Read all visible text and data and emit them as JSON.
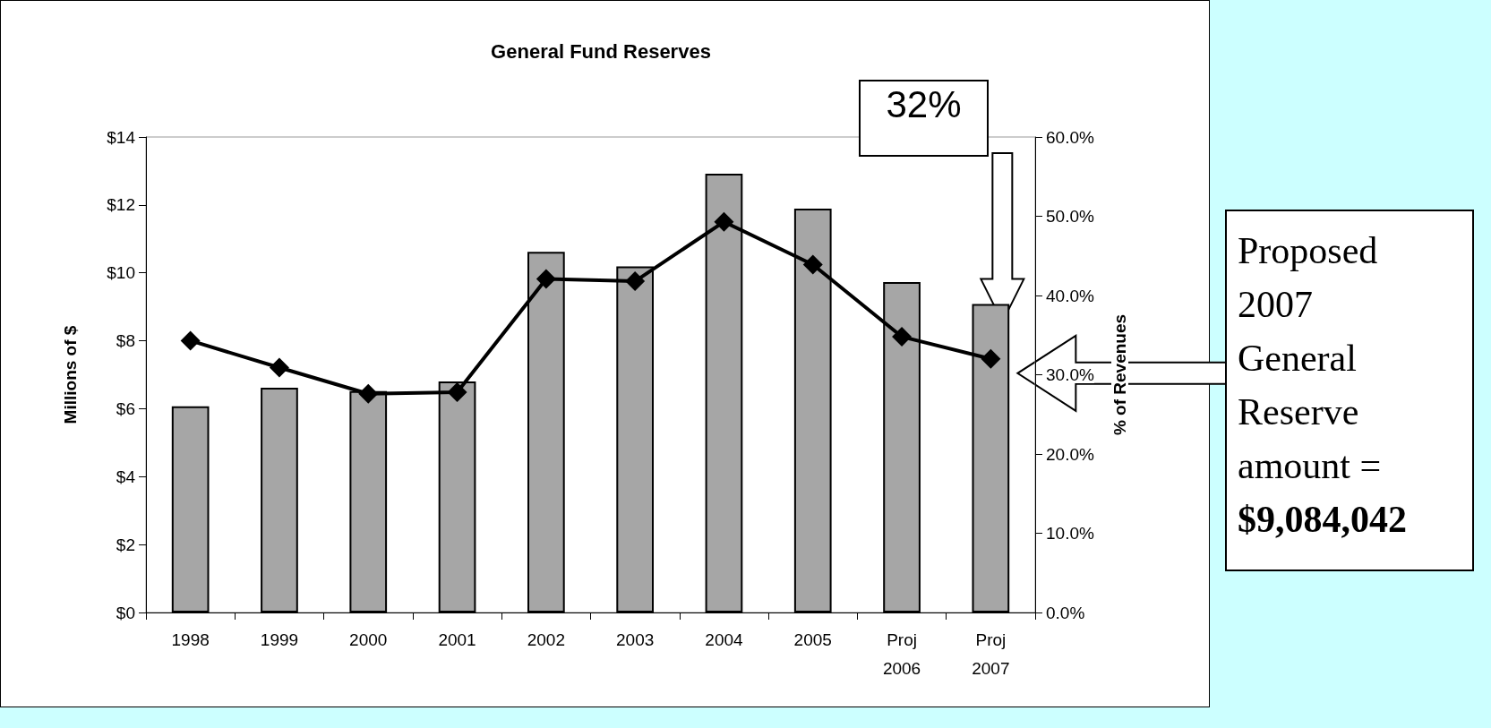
{
  "chart_data": {
    "type": "bar",
    "title": "General Fund Reserves",
    "ylabel": "Millions of $",
    "y2label": "% of Revenues",
    "categories": [
      "1998",
      "1999",
      "2000",
      "2001",
      "2002",
      "2003",
      "2004",
      "2005",
      "Proj\n2006",
      "Proj\n2007"
    ],
    "series": [
      {
        "color": "#a6a6a6",
        "values": [
          6.07,
          6.62,
          6.52,
          6.8,
          10.62,
          10.19,
          12.92,
          11.89,
          9.73,
          9.08
        ]
      },
      {
        "type": "line",
        "axis": "y2",
        "color": "#000000",
        "marker": "diamond",
        "line_style": "solid",
        "values": [
          34.3,
          30.9,
          27.6,
          27.8,
          42.1,
          41.8,
          49.3,
          43.9,
          34.8,
          32.0
        ]
      }
    ],
    "ylim": [
      0,
      14
    ],
    "yticks": [
      {
        "value": 0,
        "label": "$0"
      },
      {
        "value": 2,
        "label": "$2"
      },
      {
        "value": 4,
        "label": "$4"
      },
      {
        "value": 6,
        "label": "$6"
      },
      {
        "value": 8,
        "label": "$8"
      },
      {
        "value": 10,
        "label": "$10"
      },
      {
        "value": 12,
        "label": "$12"
      },
      {
        "value": 14,
        "label": "$14"
      }
    ],
    "y2lim": [
      0,
      60
    ],
    "y2ticks": [
      {
        "value": 0,
        "label": "0.0%"
      },
      {
        "value": 10,
        "label": "10.0%"
      },
      {
        "value": 20,
        "label": "20.0%"
      },
      {
        "value": 30,
        "label": "30.0%"
      },
      {
        "value": 40,
        "label": "40.0%"
      },
      {
        "value": 50,
        "label": "50.0%"
      },
      {
        "value": 60,
        "label": "60.0%"
      }
    ],
    "annotations": [
      "32%",
      "Proposed 2007 General Reserve amount = $9,084,042"
    ],
    "grid": false
  }
}
